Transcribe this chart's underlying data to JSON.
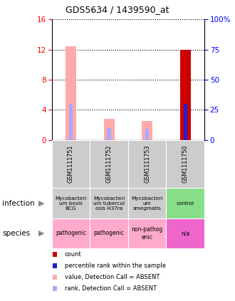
{
  "title": "GDS5634 / 1439590_at",
  "samples": [
    "GSM1111751",
    "GSM1111752",
    "GSM1111753",
    "GSM1111750"
  ],
  "left_ylim": [
    0,
    16
  ],
  "left_yticks": [
    0,
    4,
    8,
    12,
    16
  ],
  "right_ylim": [
    0,
    100
  ],
  "right_yticks": [
    0,
    25,
    50,
    75,
    100
  ],
  "bars": [
    {
      "pink_value": 12.5,
      "blue_rank": 4.8,
      "red_count": 0.0,
      "blue_solid": 0.0
    },
    {
      "pink_value": 2.8,
      "blue_rank": 1.6,
      "red_count": 0.0,
      "blue_solid": 0.0
    },
    {
      "pink_value": 2.5,
      "blue_rank": 1.5,
      "red_count": 0.0,
      "blue_solid": 0.0
    },
    {
      "pink_value": 12.0,
      "blue_rank": 4.8,
      "red_count": 12.0,
      "blue_solid": 4.8
    }
  ],
  "infection_labels": [
    "Mycobacterium bovis BCG",
    "Mycobacterium tuberculosis H37ra",
    "Mycobacterium smegmatis",
    "control"
  ],
  "infection_colors": [
    "#cccccc",
    "#cccccc",
    "#cccccc",
    "#88dd88"
  ],
  "species_labels": [
    "pathogenic",
    "pathogenic",
    "non-pathogenic",
    "n/a"
  ],
  "species_colors": [
    "#ffaacc",
    "#ffaacc",
    "#ffaacc",
    "#ee66cc"
  ],
  "gsm_bg_color": "#cccccc",
  "pink_color": "#ffaaaa",
  "blue_absent_color": "#aaaaff",
  "red_color": "#cc0000",
  "blue_solid_color": "#2222cc",
  "legend_items": [
    {
      "label": "count",
      "color": "#cc0000"
    },
    {
      "label": "percentile rank within the sample",
      "color": "#2222cc"
    },
    {
      "label": "value, Detection Call = ABSENT",
      "color": "#ffaaaa"
    },
    {
      "label": "rank, Detection Call = ABSENT",
      "color": "#aaaaff"
    }
  ]
}
